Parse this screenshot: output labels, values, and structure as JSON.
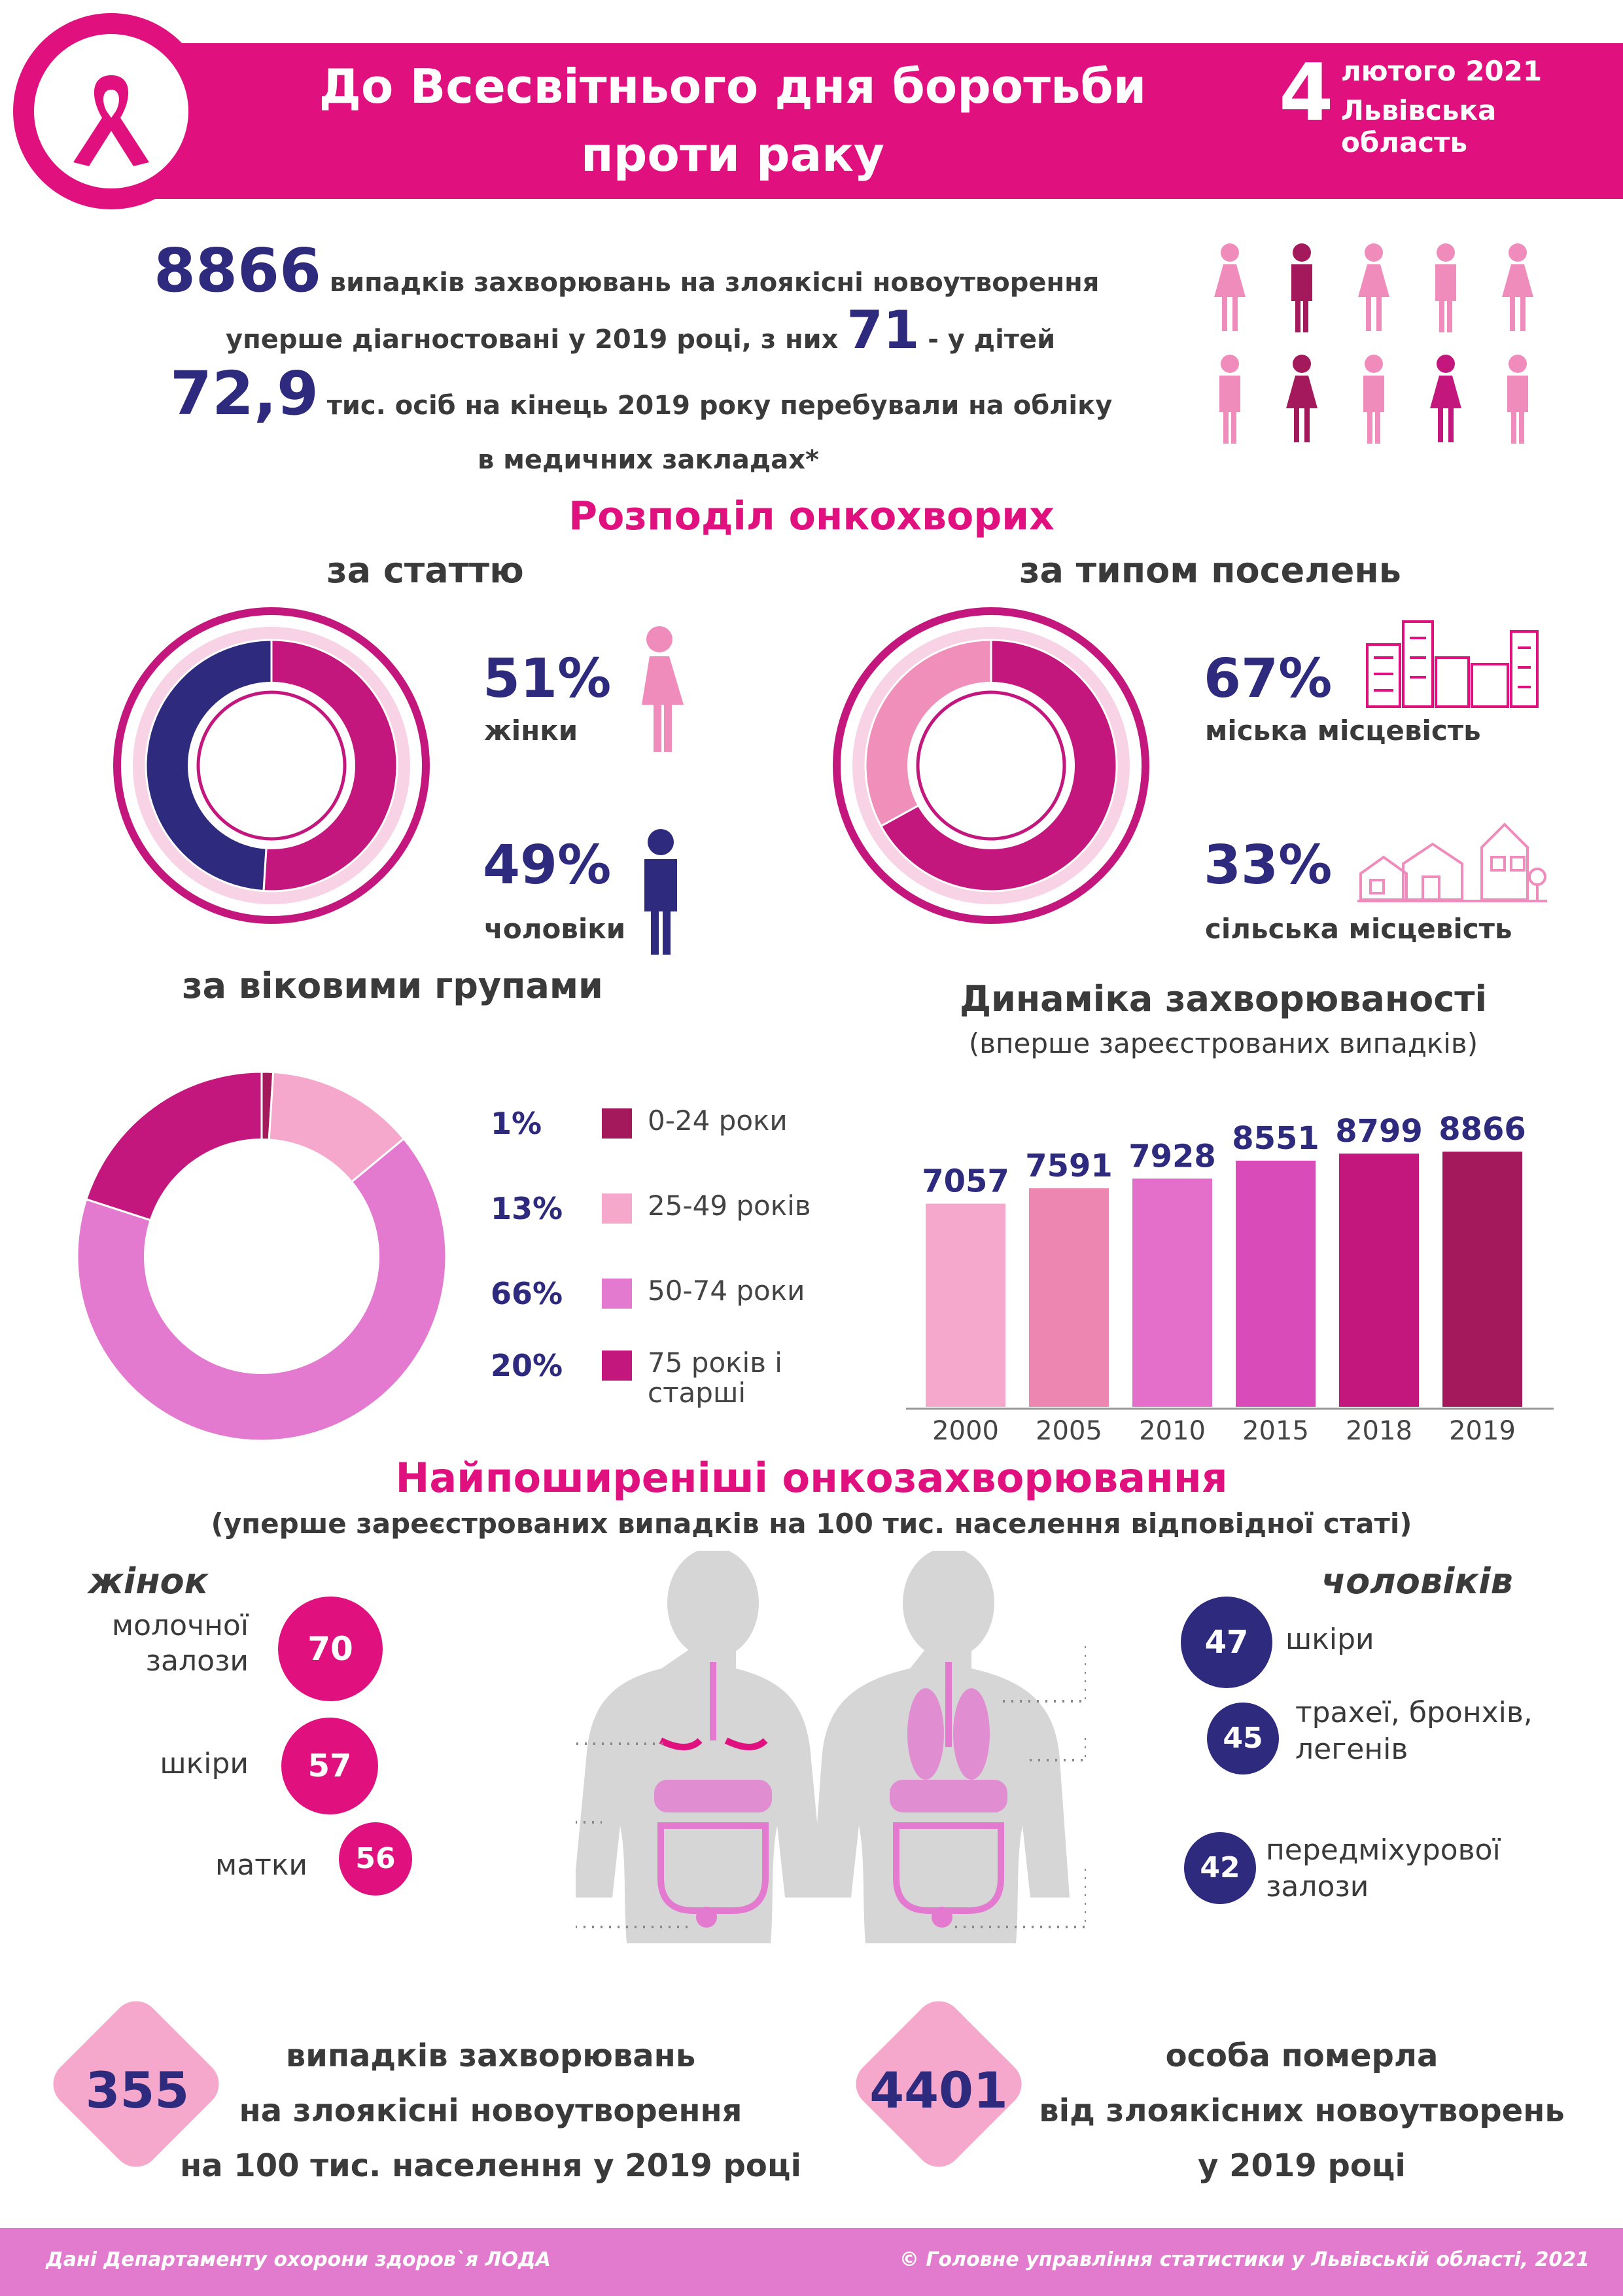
{
  "header": {
    "title_line1": "До Всесвітнього дня боротьби",
    "title_line2": "проти раку",
    "day": "4",
    "month_year": "лютого 2021",
    "region": "Львівська область",
    "ribbon_icon": "awareness-ribbon-icon"
  },
  "intro": {
    "cases": "8866",
    "cases_text_1": "випадків захворювань на злоякісні новоутворення",
    "cases_text_2": "уперше діагностовані у 2019 році, з них",
    "children": "71",
    "children_text": "- у дітей",
    "registered": "72,9",
    "registered_text_1": "тис. осіб на кінець 2019 року перебували на обліку",
    "registered_text_2": "в медичних закладах*",
    "people_icon": "person-icon"
  },
  "distribution": {
    "title": "Розподіл онкохворих",
    "by_sex": {
      "title": "за статтю",
      "women_pct": "51%",
      "women_label": "жінки",
      "men_pct": "49%",
      "men_label": "чоловіки"
    },
    "by_settlement": {
      "title": "за типом поселень",
      "urban_pct": "67%",
      "urban_label": "міська місцевість",
      "rural_pct": "33%",
      "rural_label": "сільська місцевість"
    },
    "by_age": {
      "title": "за віковими групами"
    },
    "dynamics": {
      "title": "Динаміка захворюваності",
      "subtitle": "(вперше зареєстрованих випадків)"
    }
  },
  "chart_data": [
    {
      "type": "pie",
      "id": "sex",
      "labels": [
        "жінки",
        "чоловіки"
      ],
      "values": [
        51,
        49
      ],
      "colors": [
        "#c4177e",
        "#2e2a7e"
      ]
    },
    {
      "type": "pie",
      "id": "settlement",
      "labels": [
        "міська місцевість",
        "сільська місцевість"
      ],
      "values": [
        67,
        33
      ],
      "colors": [
        "#c4177e",
        "#ef8fba"
      ]
    },
    {
      "type": "pie",
      "id": "age",
      "labels": [
        "0-24 роки",
        "25-49 років",
        "50-74 роки",
        "75 років і старші"
      ],
      "values": [
        1,
        13,
        66,
        20
      ],
      "value_labels": [
        "1%",
        "13%",
        "66%",
        "20%"
      ],
      "colors": [
        "#a3195b",
        "#f5a8cb",
        "#e37ad0",
        "#c4177e"
      ]
    },
    {
      "type": "bar",
      "id": "dynamics",
      "categories": [
        "2000",
        "2005",
        "2010",
        "2015",
        "2018",
        "2019"
      ],
      "values": [
        7057,
        7591,
        7928,
        8551,
        8799,
        8866
      ],
      "colors": [
        "#f5a8cb",
        "#ee86b2",
        "#e36fcb",
        "#d94bb8",
        "#c4177e",
        "#a3195b"
      ]
    }
  ],
  "common": {
    "title": "Найпоширеніші онкозахворювання",
    "subtitle": "(уперше зареєстрованих випадків на 100 тис. населення відповідної статі)",
    "women_title": "жінок",
    "men_title": "чоловіків",
    "women": [
      {
        "label_1": "молочної",
        "label_2": "залози",
        "value": "70"
      },
      {
        "label_1": "шкіри",
        "label_2": "",
        "value": "57"
      },
      {
        "label_1": "матки",
        "label_2": "",
        "value": "56"
      }
    ],
    "men": [
      {
        "label_1": "шкіри",
        "label_2": "",
        "value": "47"
      },
      {
        "label_1": "трахеї, бронхів,",
        "label_2": "легенів",
        "value": "45"
      },
      {
        "label_1": "передміхурової",
        "label_2": "залози",
        "value": "42"
      }
    ]
  },
  "bottom": {
    "incidence": "355",
    "incidence_1": "випадків захворювань",
    "incidence_2": "на злоякісні новоутворення",
    "incidence_3": "на 100 тис. населення у 2019 році",
    "deaths": "4401",
    "deaths_1": "особа померла",
    "deaths_2": "від злоякісних новоутворень",
    "deaths_3": "у 2019 році"
  },
  "footer": {
    "left": "Дані Департаменту охорони здоров`я ЛОДА",
    "right": "© Головне управління статистики у Львівській області, 2021"
  },
  "colors": {
    "magenta": "#e0117f",
    "navy": "#2e2a7e",
    "footer": "#e27acd"
  }
}
